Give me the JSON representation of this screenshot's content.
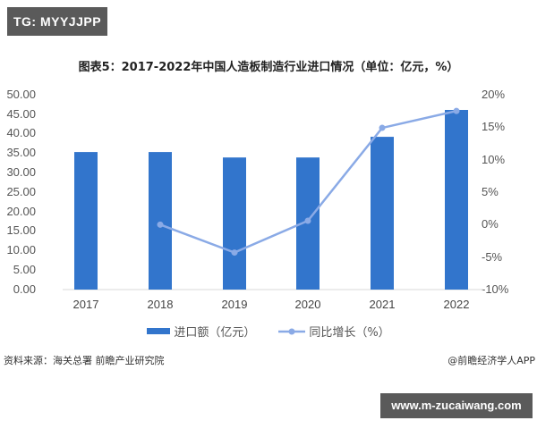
{
  "badges": {
    "top": "TG: MYYJJPP",
    "bottom": "www.m-zucaiwang.com"
  },
  "chart": {
    "title": "图表5：2017-2022年中国人造板制造行业进口情况（单位：亿元，%）",
    "y_left_ticks": [
      "50.00",
      "45.00",
      "40.00",
      "35.00",
      "30.00",
      "25.00",
      "20.00",
      "15.00",
      "10.00",
      "5.00",
      "0.00"
    ],
    "y_right_ticks": [
      "20%",
      "15%",
      "10%",
      "5%",
      "0%",
      "-5%",
      "-10%"
    ],
    "x_ticks": [
      "2017",
      "2018",
      "2019",
      "2020",
      "2021",
      "2022"
    ],
    "legend": {
      "bar": "进口额（亿元）",
      "line": "同比增长（%）"
    },
    "colors": {
      "bar": "#3275cc",
      "line": "#8aaae6"
    }
  },
  "footer": {
    "source": "资料来源：海关总署 前瞻产业研究院",
    "credit": "@前瞻经济学人APP"
  },
  "chart_data": {
    "type": "bar",
    "title": "图表5：2017-2022年中国人造板制造行业进口情况（单位：亿元，%）",
    "categories": [
      "2017",
      "2018",
      "2019",
      "2020",
      "2021",
      "2022"
    ],
    "series": [
      {
        "name": "进口额（亿元）",
        "type": "bar",
        "axis": "left",
        "values": [
          35.3,
          35.3,
          33.9,
          33.9,
          39.2,
          46.1
        ]
      },
      {
        "name": "同比增长（%）",
        "type": "line",
        "axis": "right",
        "values": [
          null,
          0.0,
          -4.3,
          0.6,
          14.9,
          17.5
        ]
      }
    ],
    "xlabel": "",
    "ylabel": "",
    "ylim": [
      0,
      50
    ],
    "y2lim": [
      -10,
      20
    ],
    "grid": false,
    "legend_position": "bottom"
  }
}
